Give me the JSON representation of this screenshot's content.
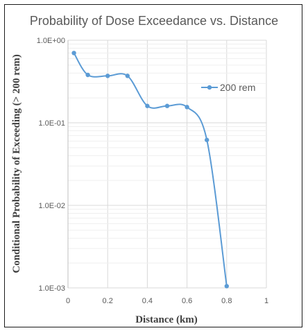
{
  "chart_data": {
    "type": "scatter",
    "title": "Probability of Dose Exceedance vs. Distance",
    "xlabel": "Distance (km)",
    "ylabel": "Conditional Probability of Exceeding (> 200 rem)",
    "xlim": [
      0,
      1
    ],
    "ylim": [
      0.001,
      1
    ],
    "yscale": "log",
    "grid": true,
    "legend_position": "right",
    "x_ticks": [
      "0",
      "0.2",
      "0.4",
      "0.6",
      "0.8",
      "1"
    ],
    "x_tick_values": [
      0,
      0.2,
      0.4,
      0.6,
      0.8,
      1
    ],
    "y_ticks": [
      "1.0E+00",
      "1.0E-01",
      "1.0E-02",
      "1.0E-03"
    ],
    "y_tick_values": [
      1,
      0.1,
      0.01,
      0.001
    ],
    "series": [
      {
        "name": "200 rem",
        "color": "#5b9bd5",
        "x": [
          0.03,
          0.1,
          0.2,
          0.3,
          0.4,
          0.5,
          0.6,
          0.7,
          0.8
        ],
        "y": [
          0.7,
          0.38,
          0.37,
          0.37,
          0.16,
          0.16,
          0.155,
          0.062,
          0.00105
        ]
      }
    ]
  }
}
